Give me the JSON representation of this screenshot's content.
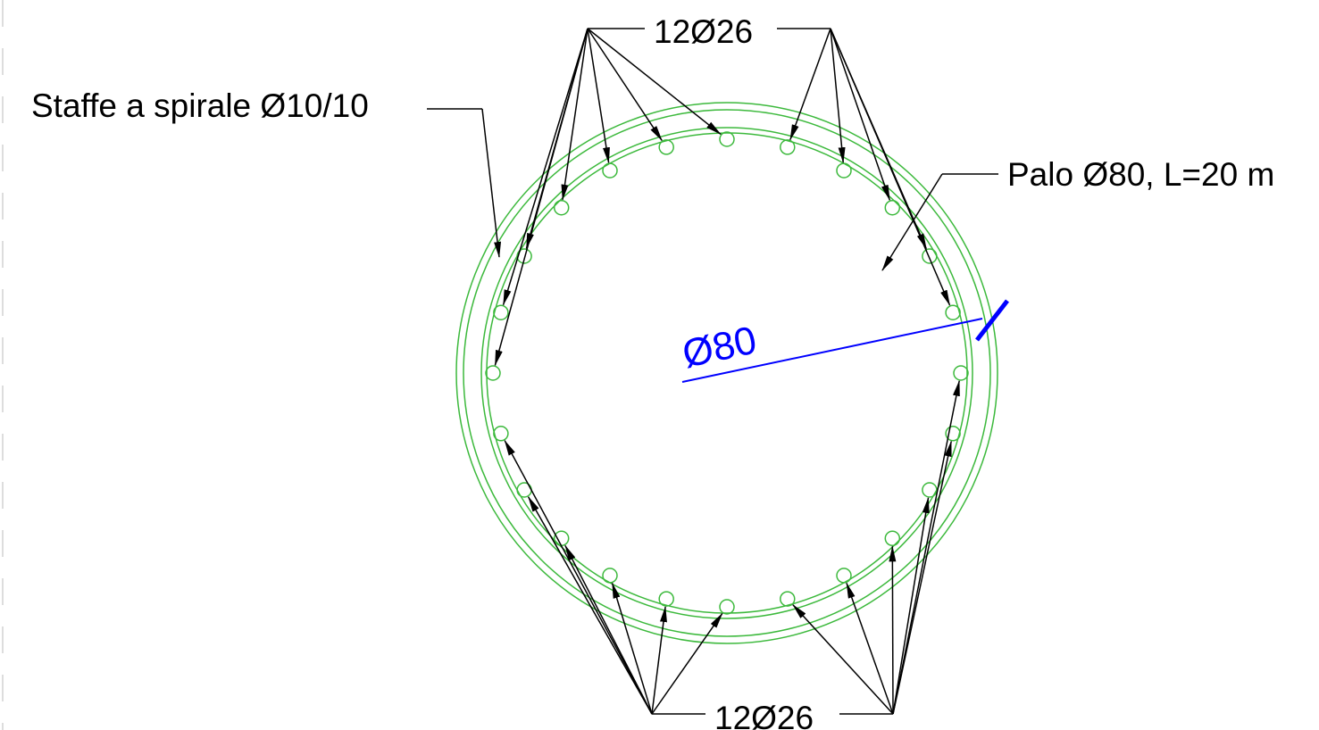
{
  "drawing": {
    "labels": {
      "bars_top": "12Ø26",
      "bars_bottom": "12Ø26",
      "stirrups": "Staffe a spirale Ø10/10",
      "pile": "Palo Ø80, L=20 m",
      "diameter": "Ø80"
    },
    "rebar": {
      "count": 24,
      "diameter_mm": 26,
      "groups": 2,
      "bars_per_group": 12
    },
    "pile": {
      "diameter_cm": 80,
      "length_m": 20
    },
    "stirrups": {
      "type": "spirale",
      "diameter_mm": 10,
      "spacing_cm": 10
    },
    "colors": {
      "section": "#3cb93c",
      "dimension": "#0000ff",
      "leader": "#000000",
      "text": "#000000",
      "guide": "#dddddd"
    }
  }
}
